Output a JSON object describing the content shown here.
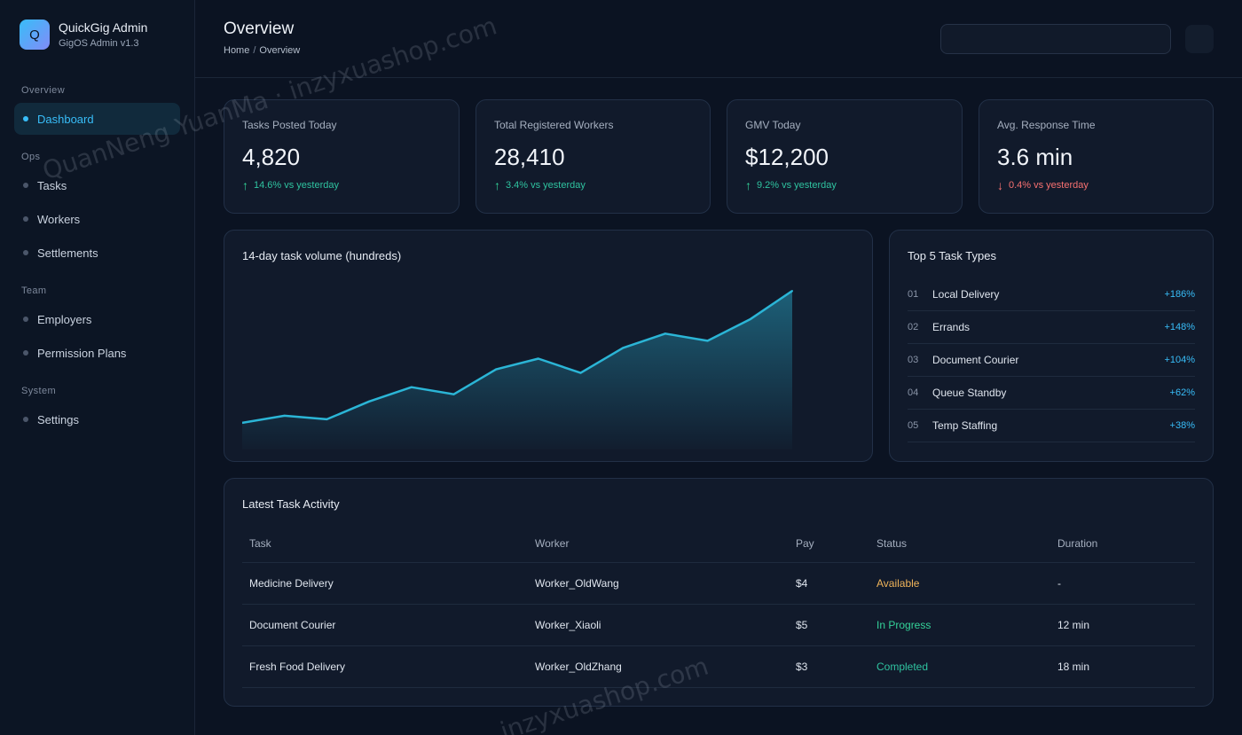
{
  "brand": {
    "logo_letter": "Q",
    "name": "QuickGig Admin",
    "version": "GigOS Admin v1.3"
  },
  "sidebar": {
    "sections": [
      {
        "title": "Overview"
      },
      {
        "title": "Ops"
      },
      {
        "title": "Team"
      },
      {
        "title": "System"
      }
    ],
    "items": [
      {
        "label": "Dashboard",
        "active": true
      },
      {
        "label": "Tasks"
      },
      {
        "label": "Workers"
      },
      {
        "label": "Settlements"
      },
      {
        "label": "Employers"
      },
      {
        "label": "Permission Plans"
      },
      {
        "label": "Settings"
      }
    ]
  },
  "header": {
    "title": "Overview",
    "breadcrumb": [
      "Home",
      "Overview"
    ],
    "breadcrumb_sep": "/",
    "search": {
      "value": "",
      "placeholder": ""
    }
  },
  "stats": [
    {
      "label": "Tasks Posted Today",
      "value": "4,820",
      "change": "14.6% vs yesterday",
      "direction": "up",
      "arrow": "↑"
    },
    {
      "label": "Total Registered Workers",
      "value": "28,410",
      "change": "3.4% vs yesterday",
      "direction": "up",
      "arrow": "↑"
    },
    {
      "label": "GMV Today",
      "value": "$12,200",
      "change": "9.2% vs yesterday",
      "direction": "up",
      "arrow": "↑"
    },
    {
      "label": "Avg. Response Time",
      "value": "3.6 min",
      "change": "0.4% vs yesterday",
      "direction": "down",
      "arrow": "↓"
    }
  ],
  "chart_data": {
    "type": "area",
    "title": "14-day task volume (hundreds)",
    "x": [
      1,
      2,
      3,
      4,
      5,
      6,
      7,
      8,
      9,
      10,
      11,
      12,
      13,
      14
    ],
    "values": [
      2.0,
      3.0,
      2.5,
      5.0,
      7.0,
      6.0,
      9.5,
      11.0,
      9.0,
      12.5,
      14.5,
      13.5,
      16.5,
      20.5
    ],
    "ylim": [
      0,
      22
    ],
    "xlabel": "",
    "ylabel": "",
    "grid": false,
    "line_color": "#2bb5d6"
  },
  "top_types": {
    "title": "Top 5 Task Types",
    "items": [
      {
        "rank": "01",
        "name": "Local Delivery",
        "change": "+186%"
      },
      {
        "rank": "02",
        "name": "Errands",
        "change": "+148%"
      },
      {
        "rank": "03",
        "name": "Document Courier",
        "change": "+104%"
      },
      {
        "rank": "04",
        "name": "Queue Standby",
        "change": "+62%"
      },
      {
        "rank": "05",
        "name": "Temp Staffing",
        "change": "+38%"
      }
    ]
  },
  "activity": {
    "title": "Latest Task Activity",
    "columns": [
      "Task",
      "Worker",
      "Pay",
      "Status",
      "Duration"
    ],
    "rows": [
      {
        "task": "Medicine Delivery",
        "worker": "Worker_OldWang",
        "pay": "$4",
        "status": "Available",
        "status_key": "available",
        "duration": "-"
      },
      {
        "task": "Document Courier",
        "worker": "Worker_Xiaoli",
        "pay": "$5",
        "status": "In Progress",
        "status_key": "progress",
        "duration": "12 min"
      },
      {
        "task": "Fresh Food Delivery",
        "worker": "Worker_OldZhang",
        "pay": "$3",
        "status": "Completed",
        "status_key": "completed",
        "duration": "18 min"
      }
    ]
  },
  "watermarks": [
    "QuanNeng YuanMa · inzyxuashop.com",
    "inzyxuashop.com"
  ]
}
